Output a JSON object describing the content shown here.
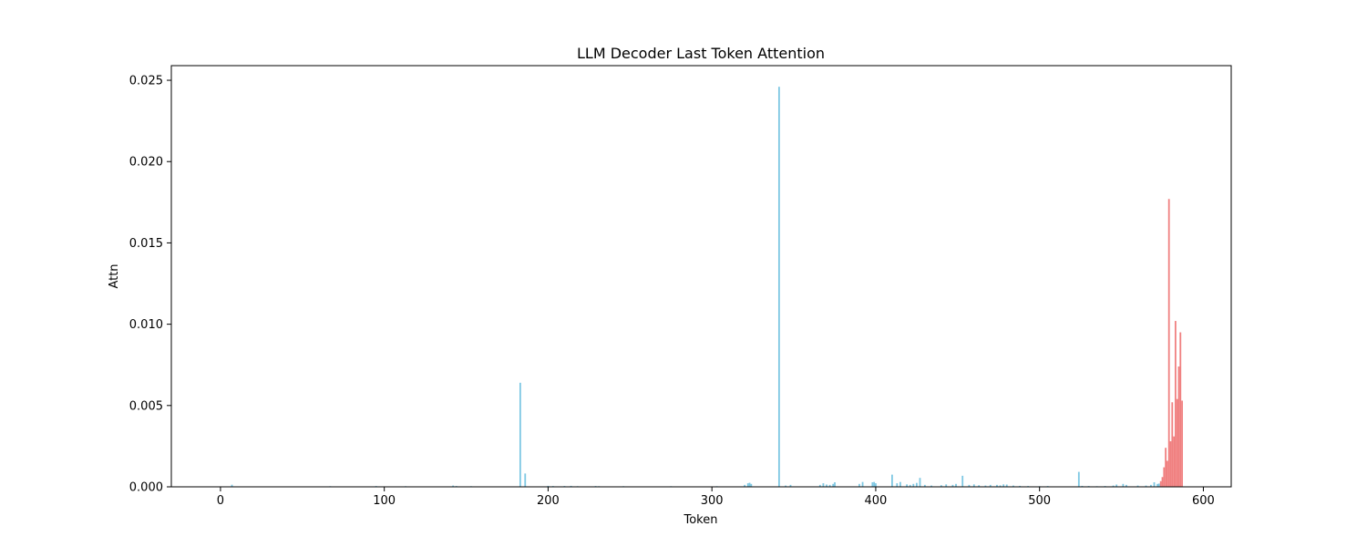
{
  "chart_data": {
    "type": "bar",
    "title": "LLM Decoder Last Token Attention",
    "xlabel": "Token",
    "ylabel": "Attn",
    "xlim": [
      -30,
      617
    ],
    "ylim": [
      0,
      0.0259
    ],
    "xticks": [
      0,
      100,
      200,
      300,
      400,
      500,
      600
    ],
    "xtick_labels": [
      "0",
      "100",
      "200",
      "300",
      "400",
      "500",
      "600"
    ],
    "yticks": [
      0,
      0.005,
      0.01,
      0.015,
      0.02,
      0.025
    ],
    "ytick_labels": [
      "0.000",
      "0.005",
      "0.010",
      "0.015",
      "0.020",
      "0.025"
    ],
    "grid": false,
    "legend": "none",
    "series": [
      {
        "color": "#7ec8e3",
        "x": [
          7,
          67,
          95,
          113,
          142,
          144,
          153,
          183,
          186,
          200,
          203,
          210,
          214,
          218,
          229,
          231,
          246,
          275,
          303,
          320,
          322,
          323,
          324,
          341,
          345,
          348,
          366,
          368,
          370,
          372,
          374,
          375,
          390,
          392,
          398,
          399,
          400,
          410,
          413,
          415,
          419,
          421,
          423,
          425,
          427,
          430,
          434,
          440,
          443,
          447,
          449,
          453,
          457,
          460,
          463,
          467,
          470,
          474,
          476,
          478,
          480,
          484,
          488,
          493,
          500,
          505,
          524,
          526,
          530,
          535,
          540,
          545,
          547,
          551,
          553,
          560,
          565,
          568,
          570,
          572,
          573
        ],
        "values": [
          0.00013,
          4e-05,
          5e-05,
          4e-05,
          8e-05,
          5e-05,
          4e-05,
          0.0064,
          0.00082,
          6e-05,
          5e-05,
          5e-05,
          6e-05,
          4e-05,
          5e-05,
          4e-05,
          4e-05,
          4e-05,
          4e-05,
          0.00012,
          0.00022,
          0.00025,
          0.00018,
          0.0246,
          8e-05,
          0.00012,
          0.00012,
          0.00022,
          0.00014,
          0.00012,
          0.00018,
          0.00028,
          0.00018,
          0.0003,
          0.00028,
          0.0003,
          0.00022,
          0.00075,
          0.00022,
          0.0003,
          0.00015,
          0.00012,
          0.00018,
          0.00024,
          0.00055,
          0.00012,
          8e-05,
          0.0001,
          0.00015,
          0.00012,
          0.00018,
          0.00068,
          0.00012,
          0.00015,
          0.0001,
          8e-05,
          0.00012,
          0.00012,
          9e-05,
          0.00015,
          0.00014,
          8e-05,
          6e-05,
          5e-05,
          4e-05,
          5e-05,
          0.00092,
          6e-05,
          5e-05,
          4e-05,
          5e-05,
          8e-05,
          0.00014,
          0.00018,
          0.00012,
          8e-05,
          8e-05,
          0.00012,
          0.00028,
          0.00018,
          0.0002
        ]
      },
      {
        "color": "#f08080",
        "x": [
          574,
          575,
          576,
          577,
          578,
          579,
          580,
          581,
          582,
          583,
          584,
          585,
          586,
          587
        ],
        "values": [
          0.00035,
          0.0006,
          0.0012,
          0.0024,
          0.0016,
          0.0177,
          0.0028,
          0.0052,
          0.0031,
          0.0102,
          0.0054,
          0.0074,
          0.0095,
          0.0053
        ]
      }
    ]
  }
}
